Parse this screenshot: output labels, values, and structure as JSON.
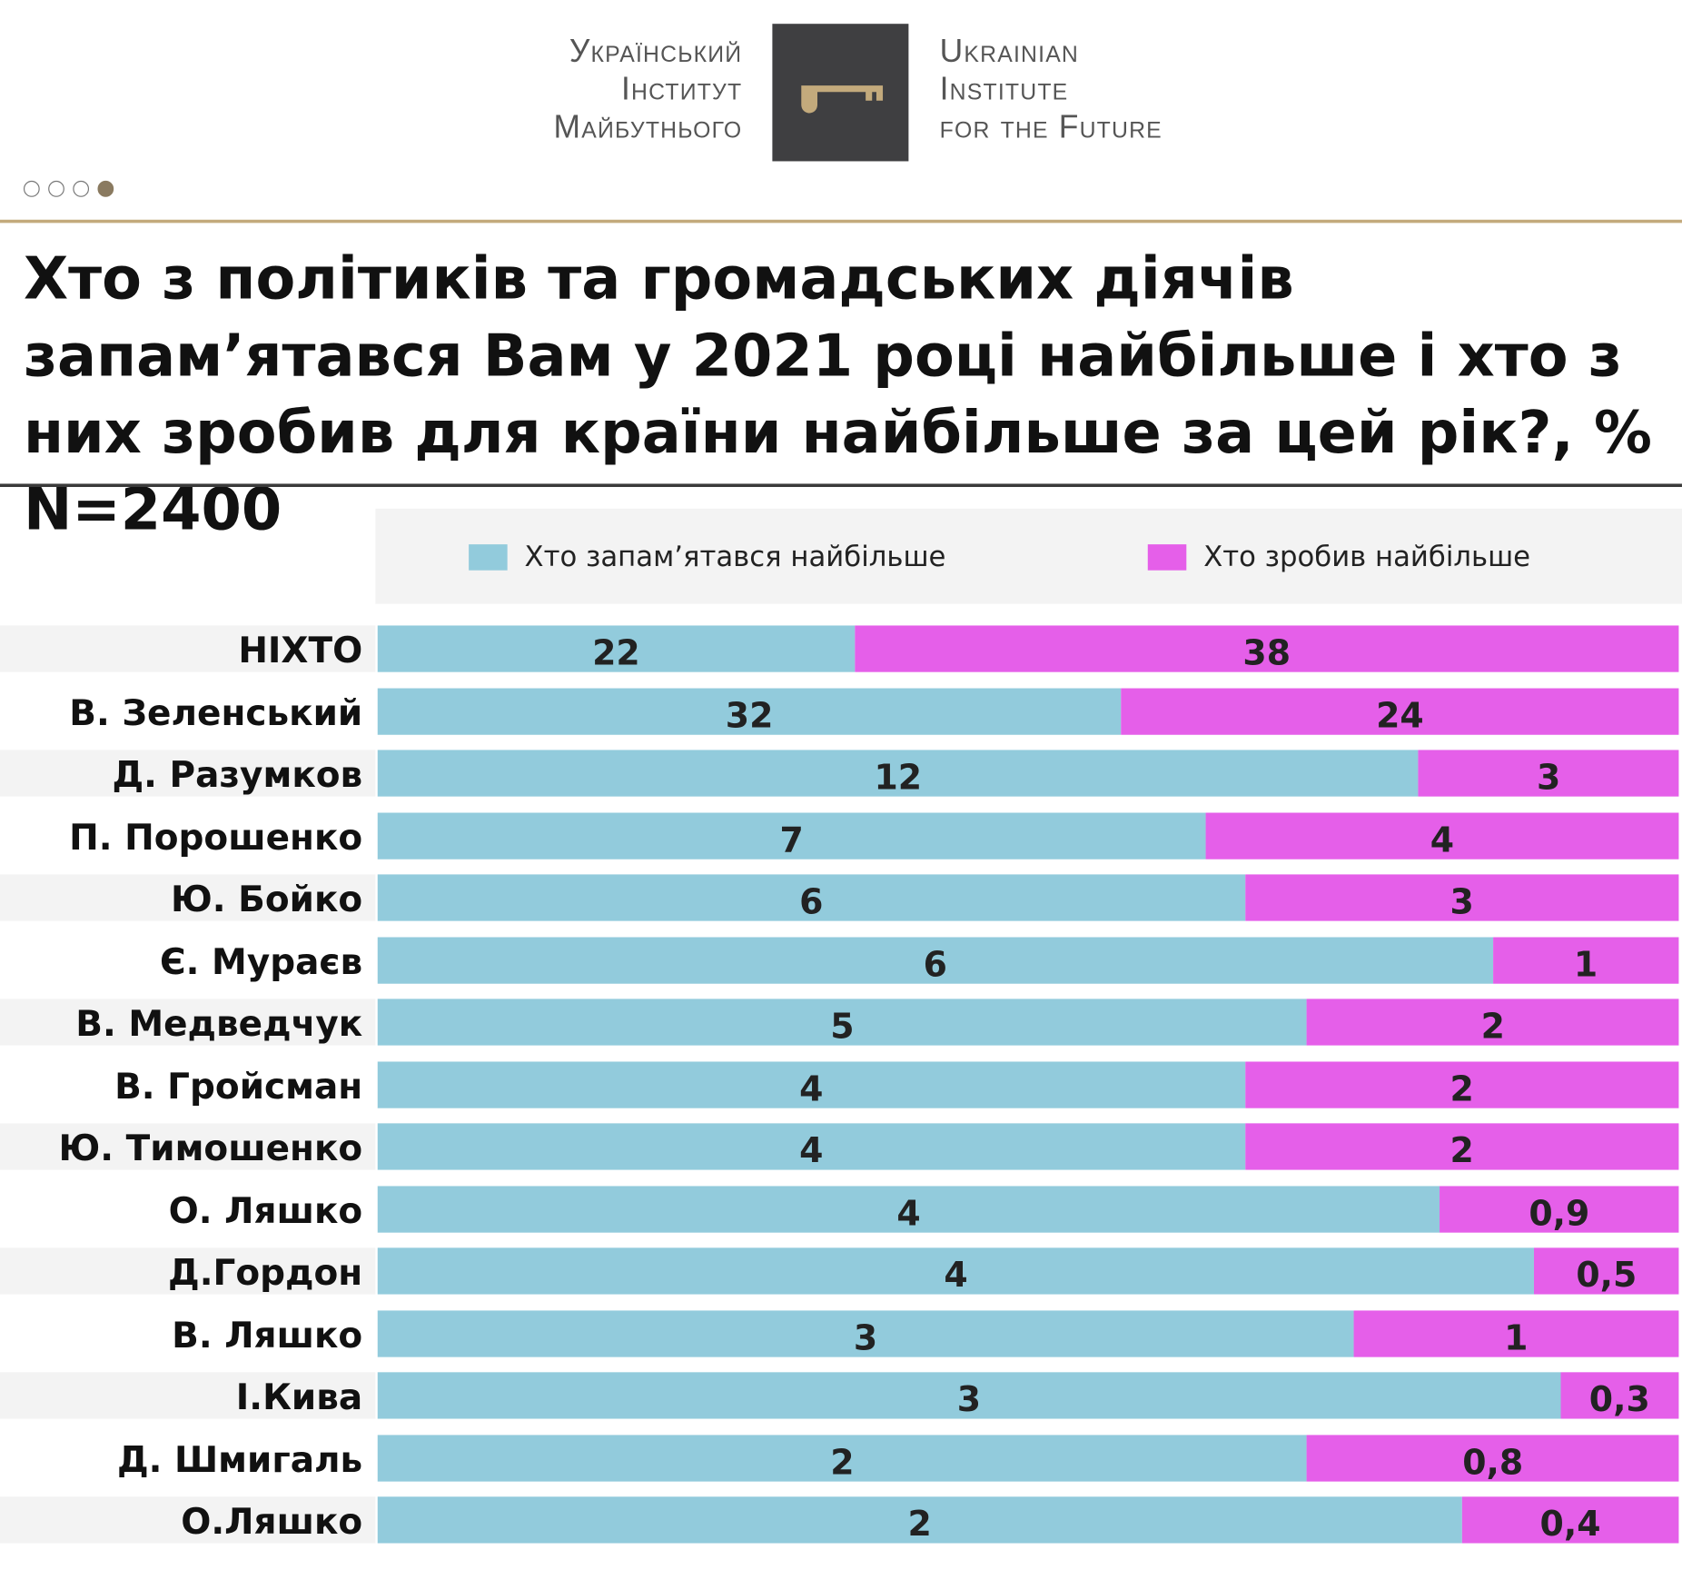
{
  "logo": {
    "ua_lines": [
      "Український",
      "Інститут",
      "Майбутнього"
    ],
    "en_lines": [
      "Ukrainian",
      "Institute",
      "for the Future"
    ]
  },
  "pagination": {
    "total": 4,
    "active": 4
  },
  "title": "Хто з політиків та громадських діячів запам’ятався Вам у 2021 році найбільше і хто з них зробив для країни найбільше за цей рік?, % N=2400",
  "colors": {
    "series1": "#92cbdc",
    "series2": "#e55fe9",
    "gold": "#c3aa7c"
  },
  "chart_data": {
    "type": "bar",
    "stacking": "percent",
    "orientation": "horizontal",
    "title": "Хто з політиків та громадських діячів запам’ятався Вам у 2021 році найбільше і хто з них зробив для країни найбільше за цей рік?, % N=2400",
    "legend_placement": "top",
    "categories": [
      "НІХТО",
      "В. Зеленський",
      "Д. Разумков",
      "П. Порошенко",
      "Ю. Бойко",
      "Є. Мураєв",
      "В. Медведчук",
      "В. Гройсман",
      "Ю. Тимошенко",
      "О. Ляшко",
      "Д.Гордон",
      "В. Ляшко",
      "І.Кива",
      "Д. Шмигаль",
      "О.Ляшко"
    ],
    "series": [
      {
        "name": "Хто запам’ятався найбільше",
        "values": [
          22,
          32,
          12,
          7,
          6,
          6,
          5,
          4,
          4,
          4,
          4,
          3,
          3,
          2,
          2
        ],
        "labels": [
          "22",
          "32",
          "12",
          "7",
          "6",
          "6",
          "5",
          "4",
          "4",
          "4",
          "4",
          "3",
          "3",
          "2",
          "2"
        ]
      },
      {
        "name": "Хто зробив найбільше",
        "values": [
          38,
          24,
          3,
          4,
          3,
          1,
          2,
          2,
          2,
          0.9,
          0.5,
          1,
          0.3,
          0.8,
          0.4
        ],
        "labels": [
          "38",
          "24",
          "3",
          "4",
          "3",
          "1",
          "2",
          "2",
          "2",
          "0,9",
          "0,5",
          "1",
          "0,3",
          "0,8",
          "0,4"
        ]
      }
    ]
  }
}
